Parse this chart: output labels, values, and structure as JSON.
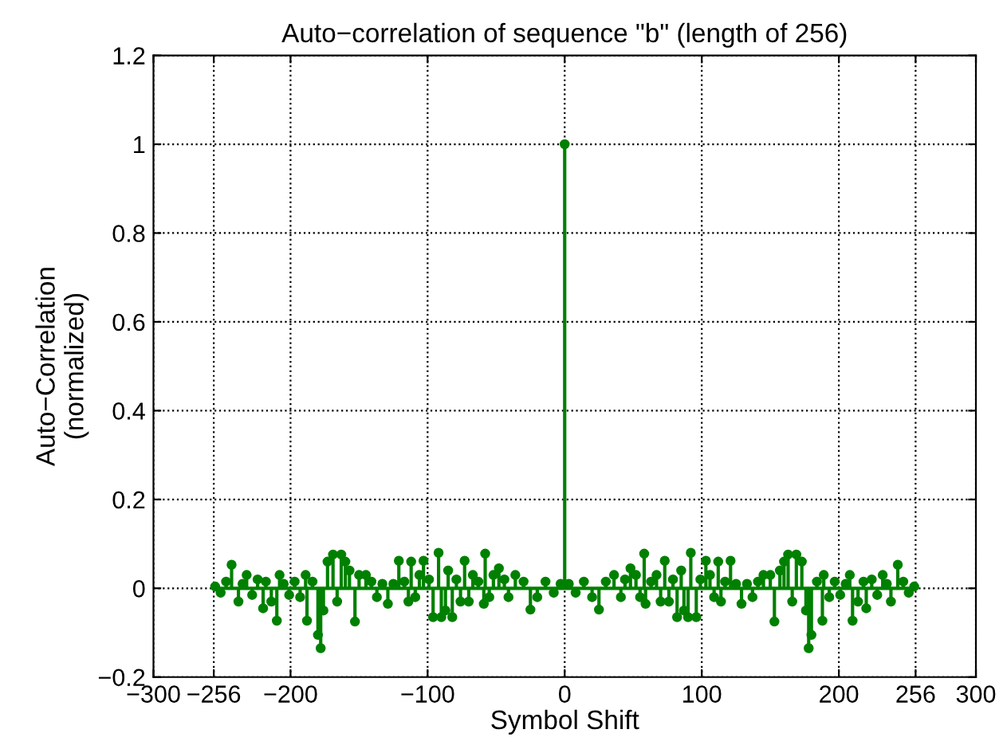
{
  "chart_data": {
    "type": "lollipop",
    "title": "Auto−correlation of sequence \"b\" (length of 256)",
    "xlabel": "Symbol Shift",
    "ylabel": "Auto−Correlation\n(normalized)",
    "xlim": [
      -300,
      300
    ],
    "xticks": [
      -300,
      -256,
      -200,
      -100,
      0,
      100,
      200,
      256,
      300
    ],
    "ylim": [
      -0.2,
      1.2
    ],
    "yticks": [
      -0.2,
      0,
      0.2,
      0.4,
      0.6,
      0.8,
      1,
      1.2
    ],
    "grid": true,
    "marker": "circle",
    "line_style": "solid",
    "series": [
      {
        "color": "#008000",
        "x": [
          -255,
          -251,
          -247,
          -243,
          -238,
          -235,
          -232,
          -228,
          -224,
          -220,
          -218,
          -214,
          -210,
          -208,
          -205,
          -201,
          -197,
          -193,
          -189,
          -188,
          -184,
          -180,
          -178,
          -176,
          -173,
          -169,
          -166,
          -163,
          -160,
          -157,
          -153,
          -150,
          -145,
          -141,
          -137,
          -133,
          -129,
          -125,
          -121,
          -117,
          -114,
          -112,
          -109,
          -106,
          -103,
          -99,
          -96,
          -92,
          -90,
          -87,
          -85,
          -82,
          -79,
          -76,
          -73,
          -70,
          -67,
          -63,
          -59,
          -58,
          -55,
          -52,
          -48,
          -44,
          -41,
          -36,
          -30,
          -25,
          -20,
          -14,
          -8,
          -3,
          0,
          3,
          8,
          14,
          20,
          25,
          30,
          36,
          41,
          44,
          48,
          52,
          55,
          58,
          59,
          63,
          67,
          70,
          73,
          76,
          79,
          82,
          85,
          87,
          90,
          92,
          96,
          99,
          103,
          106,
          109,
          112,
          114,
          117,
          121,
          125,
          129,
          133,
          137,
          141,
          145,
          150,
          153,
          157,
          160,
          163,
          166,
          169,
          173,
          176,
          178,
          180,
          184,
          188,
          189,
          193,
          197,
          201,
          205,
          208,
          210,
          214,
          218,
          220,
          224,
          228,
          232,
          235,
          238,
          243,
          247,
          251,
          255
        ],
        "values": [
          0.004,
          -0.01,
          0.015,
          0.053,
          -0.03,
          0.01,
          0.03,
          -0.015,
          0.02,
          -0.045,
          0.015,
          -0.03,
          -0.073,
          0.03,
          0.01,
          -0.015,
          0.015,
          -0.02,
          0.03,
          -0.073,
          0.015,
          -0.105,
          -0.135,
          -0.05,
          0.06,
          0.076,
          -0.03,
          0.076,
          0.06,
          0.04,
          -0.075,
          0.03,
          0.03,
          0.015,
          -0.02,
          0.01,
          -0.035,
          0.01,
          0.062,
          0.015,
          -0.03,
          0.06,
          -0.02,
          0.03,
          0.062,
          0.02,
          -0.065,
          0.08,
          -0.065,
          -0.05,
          0.04,
          -0.065,
          0.02,
          -0.03,
          0.062,
          -0.03,
          0.03,
          0.015,
          -0.035,
          0.078,
          -0.02,
          0.03,
          0.045,
          0.02,
          -0.02,
          0.03,
          0.015,
          -0.048,
          -0.02,
          0.015,
          -0.01,
          0.01,
          1,
          0.01,
          -0.01,
          0.015,
          -0.02,
          -0.048,
          0.015,
          0.03,
          -0.02,
          0.02,
          0.045,
          0.03,
          -0.02,
          0.078,
          -0.035,
          0.015,
          0.03,
          -0.03,
          0.062,
          -0.03,
          0.02,
          -0.065,
          0.04,
          -0.05,
          -0.065,
          0.08,
          -0.065,
          0.02,
          0.062,
          0.03,
          -0.02,
          0.06,
          -0.03,
          0.015,
          0.062,
          0.01,
          -0.035,
          0.01,
          -0.02,
          0.015,
          0.03,
          0.03,
          -0.075,
          0.04,
          0.06,
          0.076,
          -0.03,
          0.076,
          0.06,
          -0.05,
          -0.135,
          -0.105,
          0.015,
          -0.073,
          0.03,
          -0.02,
          0.015,
          -0.015,
          0.01,
          0.03,
          -0.073,
          -0.03,
          0.015,
          -0.045,
          0.02,
          -0.015,
          0.03,
          0.01,
          -0.03,
          0.053,
          0.015,
          -0.01,
          0.004
        ]
      }
    ]
  }
}
